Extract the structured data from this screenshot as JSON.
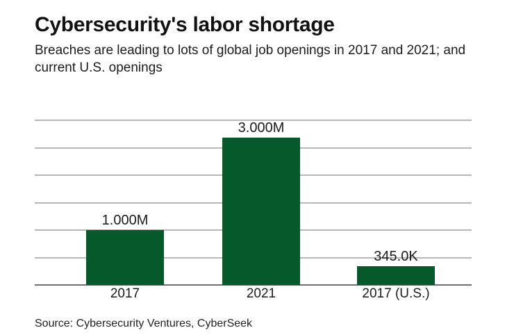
{
  "header": {
    "title": "Cybersecurity's labor shortage",
    "subtitle": "Breaches are leading to lots of global job openings in 2017 and 2021; and current U.S. openings"
  },
  "chart_data": {
    "type": "bar",
    "title": "Cybersecurity's labor shortage",
    "subtitle": "Breaches are leading to lots of global job openings in 2017 and 2021; and current U.S. openings",
    "categories": [
      "2017",
      "2021",
      "2017 (U.S.)"
    ],
    "values": [
      1000000,
      3000000,
      345000
    ],
    "value_labels": [
      "1.000M",
      "3.000M",
      "345.0K"
    ],
    "xlabel": "",
    "ylabel": "",
    "ylim": [
      0,
      3000000
    ],
    "grid_interval": 500000,
    "grid": "horizontal gridlines every 0.5M, no y-axis tick labels",
    "legend": "none",
    "bar_color": "#05592A"
  },
  "footer": {
    "source": "Source: Cybersecurity Ventures, CyberSeek"
  },
  "colors": {
    "background": "#ffffff",
    "bar": "#05592A",
    "gridline": "#b7b7b7",
    "axis_line": "#6f6f6f",
    "text": "#1a1a1a"
  }
}
